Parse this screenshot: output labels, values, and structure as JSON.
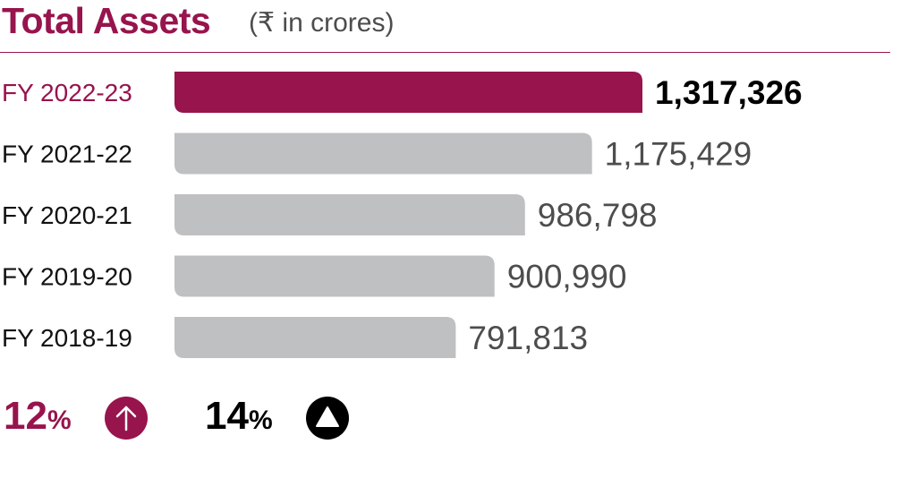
{
  "header": {
    "title": "Total Assets",
    "subtitle": "(₹ in crores)"
  },
  "colors": {
    "accent": "#97144d",
    "bar_muted": "#bfc0c2",
    "value_muted": "#4d4d4d",
    "value_highlight": "#000000"
  },
  "chart_data": {
    "type": "bar",
    "orientation": "horizontal",
    "categories": [
      "FY 2022-23",
      "FY 2021-22",
      "FY 2020-21",
      "FY 2019-20",
      "FY 2018-19"
    ],
    "values": [
      1317326,
      1175429,
      986798,
      900990,
      791813
    ],
    "value_labels": [
      "1,317,326",
      "1,175,429",
      "986,798",
      "900,990",
      "791,813"
    ],
    "highlight_index": 0,
    "title": "Total Assets",
    "xlabel": "",
    "ylabel": "",
    "grid": false
  },
  "growth": [
    {
      "value": "12",
      "unit": "%",
      "icon": "arrow-up-circle-icon"
    },
    {
      "value": "14",
      "unit": "%",
      "icon": "triangle-up-circle-icon"
    }
  ]
}
